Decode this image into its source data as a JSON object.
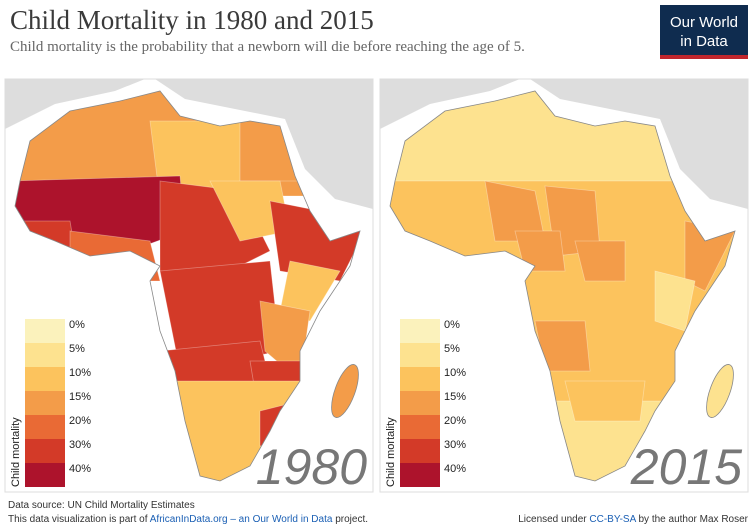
{
  "header": {
    "title": "Child Mortality in 1980 and 2015",
    "subtitle": "Child mortality is the probability that a newborn will die before reaching the age of 5.",
    "logo": [
      "Our World",
      "in Data"
    ]
  },
  "legend": {
    "title": "Child mortality",
    "labels": [
      "0%",
      "5%",
      "10%",
      "15%",
      "20%",
      "30%",
      "40%"
    ],
    "colors": [
      "#fbf2bc",
      "#fde28f",
      "#fcc35d",
      "#f39c49",
      "#e96a35",
      "#d33a28",
      "#ad132c"
    ]
  },
  "maps": [
    {
      "year": "1980"
    },
    {
      "year": "2015"
    }
  ],
  "footer": {
    "source": "Data source: UN Child Mortality Estimates",
    "part_prefix": "This data visualization is part of ",
    "part_link": "AfricanInData.org – an Our World in Data",
    "part_suffix": " project.",
    "license_prefix": "Licensed under ",
    "license_link": "CC-BY-SA",
    "license_suffix": " by the author Max Roser"
  }
}
